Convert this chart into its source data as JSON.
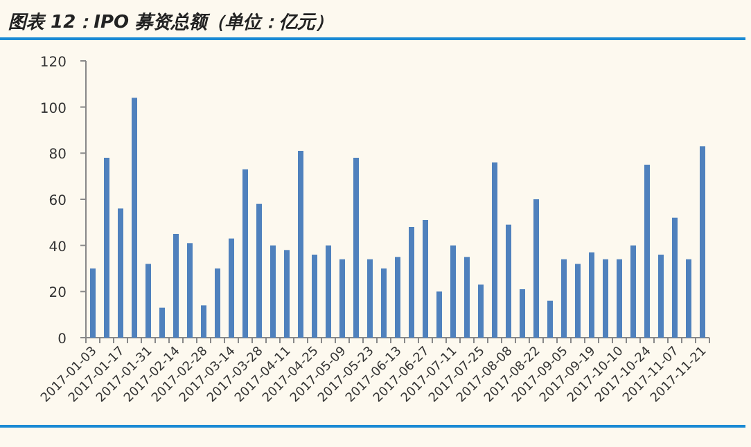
{
  "chart_data": {
    "type": "bar",
    "title": "图表 12：IPO 募资总额（单位：亿元）",
    "categories": [
      "2017-01-03",
      null,
      "2017-01-17",
      null,
      "2017-01-31",
      null,
      "2017-02-14",
      null,
      "2017-02-28",
      null,
      "2017-03-14",
      null,
      "2017-03-28",
      null,
      "2017-04-11",
      null,
      "2017-04-25",
      null,
      "2017-05-09",
      null,
      "2017-05-23",
      null,
      "2017-06-13",
      null,
      "2017-06-27",
      null,
      "2017-07-11",
      null,
      "2017-07-25",
      null,
      "2017-08-08",
      null,
      "2017-08-22",
      null,
      "2017-09-05",
      null,
      "2017-09-19",
      null,
      "2017-10-10",
      null,
      "2017-10-24",
      null,
      "2017-11-07",
      null,
      "2017-11-21"
    ],
    "values": [
      30,
      78,
      56,
      104,
      32,
      13,
      45,
      41,
      14,
      30,
      43,
      73,
      58,
      40,
      38,
      81,
      36,
      40,
      34,
      78,
      34,
      30,
      35,
      48,
      51,
      20,
      40,
      35,
      23,
      76,
      49,
      21,
      60,
      16,
      34,
      32,
      37,
      34,
      34,
      40,
      75,
      36,
      52,
      34,
      83
    ],
    "color": "#4f81bd",
    "ylim": [
      0,
      120
    ],
    "yticks": [
      0,
      20,
      40,
      60,
      80,
      100,
      120
    ]
  }
}
